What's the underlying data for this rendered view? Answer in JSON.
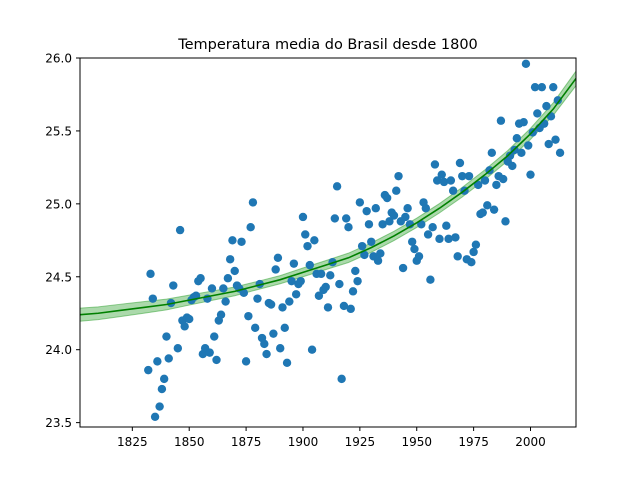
{
  "chart_data": {
    "type": "scatter",
    "title": "Temperatura media do Brasil desde 1800",
    "xlabel": "",
    "ylabel": "",
    "xlim": [
      1802,
      2020
    ],
    "ylim": [
      23.47,
      26.0
    ],
    "xticks": [
      1825,
      1850,
      1875,
      1900,
      1925,
      1950,
      1975,
      2000
    ],
    "yticks": [
      23.5,
      24.0,
      24.5,
      25.0,
      25.5,
      26.0
    ],
    "ytick_labels": [
      "23.5",
      "24.0",
      "24.5",
      "25.0",
      "25.5",
      "26.0"
    ],
    "grid": false,
    "colors": {
      "points": "#1f77b4",
      "fit_line": "#008000",
      "band": "#2ca02c"
    },
    "points": [
      [
        1832,
        23.86
      ],
      [
        1833,
        24.52
      ],
      [
        1834,
        24.35
      ],
      [
        1835,
        23.54
      ],
      [
        1836,
        23.92
      ],
      [
        1837,
        23.61
      ],
      [
        1838,
        23.73
      ],
      [
        1839,
        23.8
      ],
      [
        1840,
        24.09
      ],
      [
        1841,
        23.94
      ],
      [
        1842,
        24.32
      ],
      [
        1843,
        24.44
      ],
      [
        1845,
        24.01
      ],
      [
        1846,
        24.82
      ],
      [
        1847,
        24.2
      ],
      [
        1848,
        24.16
      ],
      [
        1849,
        24.22
      ],
      [
        1850,
        24.21
      ],
      [
        1851,
        24.34
      ],
      [
        1852,
        24.36
      ],
      [
        1853,
        24.37
      ],
      [
        1854,
        24.47
      ],
      [
        1855,
        24.49
      ],
      [
        1856,
        23.97
      ],
      [
        1857,
        24.01
      ],
      [
        1858,
        24.35
      ],
      [
        1859,
        23.98
      ],
      [
        1860,
        24.42
      ],
      [
        1861,
        24.09
      ],
      [
        1862,
        23.93
      ],
      [
        1863,
        24.2
      ],
      [
        1864,
        24.24
      ],
      [
        1865,
        24.42
      ],
      [
        1866,
        24.33
      ],
      [
        1867,
        24.49
      ],
      [
        1868,
        24.62
      ],
      [
        1869,
        24.75
      ],
      [
        1870,
        24.54
      ],
      [
        1871,
        24.44
      ],
      [
        1872,
        24.42
      ],
      [
        1873,
        24.74
      ],
      [
        1874,
        24.39
      ],
      [
        1875,
        23.92
      ],
      [
        1876,
        24.23
      ],
      [
        1877,
        24.84
      ],
      [
        1878,
        25.01
      ],
      [
        1879,
        24.15
      ],
      [
        1880,
        24.35
      ],
      [
        1881,
        24.45
      ],
      [
        1882,
        24.08
      ],
      [
        1883,
        24.04
      ],
      [
        1884,
        23.97
      ],
      [
        1885,
        24.32
      ],
      [
        1886,
        24.31
      ],
      [
        1887,
        24.11
      ],
      [
        1888,
        24.55
      ],
      [
        1889,
        24.63
      ],
      [
        1890,
        24.01
      ],
      [
        1891,
        24.29
      ],
      [
        1892,
        24.15
      ],
      [
        1893,
        23.91
      ],
      [
        1894,
        24.33
      ],
      [
        1895,
        24.47
      ],
      [
        1896,
        24.59
      ],
      [
        1897,
        24.38
      ],
      [
        1898,
        24.45
      ],
      [
        1899,
        24.47
      ],
      [
        1900,
        24.91
      ],
      [
        1901,
        24.79
      ],
      [
        1902,
        24.71
      ],
      [
        1903,
        24.58
      ],
      [
        1904,
        24.0
      ],
      [
        1905,
        24.75
      ],
      [
        1906,
        24.52
      ],
      [
        1907,
        24.37
      ],
      [
        1908,
        24.52
      ],
      [
        1909,
        24.41
      ],
      [
        1910,
        24.43
      ],
      [
        1911,
        24.29
      ],
      [
        1912,
        24.51
      ],
      [
        1913,
        24.6
      ],
      [
        1914,
        24.9
      ],
      [
        1915,
        25.12
      ],
      [
        1916,
        24.45
      ],
      [
        1917,
        23.8
      ],
      [
        1918,
        24.3
      ],
      [
        1919,
        24.9
      ],
      [
        1920,
        24.84
      ],
      [
        1921,
        24.28
      ],
      [
        1922,
        24.4
      ],
      [
        1923,
        24.54
      ],
      [
        1924,
        24.47
      ],
      [
        1925,
        25.01
      ],
      [
        1926,
        24.71
      ],
      [
        1927,
        24.65
      ],
      [
        1928,
        24.95
      ],
      [
        1929,
        24.86
      ],
      [
        1930,
        24.74
      ],
      [
        1931,
        24.64
      ],
      [
        1932,
        24.97
      ],
      [
        1933,
        24.61
      ],
      [
        1934,
        24.66
      ],
      [
        1935,
        24.86
      ],
      [
        1936,
        25.06
      ],
      [
        1937,
        25.04
      ],
      [
        1938,
        24.88
      ],
      [
        1939,
        24.94
      ],
      [
        1940,
        24.92
      ],
      [
        1941,
        25.09
      ],
      [
        1942,
        25.19
      ],
      [
        1943,
        24.88
      ],
      [
        1944,
        24.56
      ],
      [
        1945,
        24.91
      ],
      [
        1946,
        24.97
      ],
      [
        1947,
        24.86
      ],
      [
        1948,
        24.74
      ],
      [
        1949,
        24.69
      ],
      [
        1950,
        24.61
      ],
      [
        1951,
        24.64
      ],
      [
        1952,
        24.86
      ],
      [
        1953,
        25.01
      ],
      [
        1954,
        24.97
      ],
      [
        1955,
        24.79
      ],
      [
        1956,
        24.48
      ],
      [
        1957,
        24.84
      ],
      [
        1958,
        25.27
      ],
      [
        1959,
        25.16
      ],
      [
        1960,
        24.76
      ],
      [
        1961,
        25.2
      ],
      [
        1962,
        25.15
      ],
      [
        1963,
        24.85
      ],
      [
        1964,
        24.76
      ],
      [
        1965,
        25.16
      ],
      [
        1966,
        25.09
      ],
      [
        1967,
        24.77
      ],
      [
        1968,
        24.64
      ],
      [
        1969,
        25.28
      ],
      [
        1970,
        25.19
      ],
      [
        1971,
        25.09
      ],
      [
        1972,
        24.62
      ],
      [
        1973,
        25.19
      ],
      [
        1974,
        24.6
      ],
      [
        1975,
        24.67
      ],
      [
        1976,
        24.72
      ],
      [
        1977,
        25.13
      ],
      [
        1978,
        24.93
      ],
      [
        1979,
        24.94
      ],
      [
        1980,
        25.16
      ],
      [
        1981,
        24.99
      ],
      [
        1982,
        25.23
      ],
      [
        1983,
        25.35
      ],
      [
        1984,
        24.96
      ],
      [
        1985,
        25.13
      ],
      [
        1986,
        25.19
      ],
      [
        1987,
        25.57
      ],
      [
        1988,
        25.17
      ],
      [
        1989,
        24.88
      ],
      [
        1990,
        25.29
      ],
      [
        1991,
        25.33
      ],
      [
        1992,
        25.26
      ],
      [
        1993,
        25.37
      ],
      [
        1994,
        25.45
      ],
      [
        1995,
        25.55
      ],
      [
        1996,
        25.35
      ],
      [
        1997,
        25.56
      ],
      [
        1998,
        25.96
      ],
      [
        1999,
        25.4
      ],
      [
        2000,
        25.2
      ],
      [
        2001,
        25.49
      ],
      [
        2002,
        25.8
      ],
      [
        2003,
        25.62
      ],
      [
        2004,
        25.52
      ],
      [
        2005,
        25.8
      ],
      [
        2006,
        25.55
      ],
      [
        2007,
        25.67
      ],
      [
        2008,
        25.41
      ],
      [
        2009,
        25.6
      ],
      [
        2010,
        25.8
      ],
      [
        2011,
        25.44
      ],
      [
        2012,
        25.71
      ],
      [
        2013,
        25.35
      ]
    ],
    "fit": {
      "x": [
        1802,
        1810,
        1820,
        1830,
        1840,
        1850,
        1860,
        1870,
        1880,
        1890,
        1900,
        1910,
        1920,
        1930,
        1940,
        1950,
        1960,
        1970,
        1980,
        1990,
        2000,
        2010,
        2020
      ],
      "y": [
        24.24,
        24.25,
        24.27,
        24.29,
        24.31,
        24.34,
        24.37,
        24.4,
        24.44,
        24.48,
        24.53,
        24.58,
        24.63,
        24.7,
        24.78,
        24.87,
        24.97,
        25.08,
        25.2,
        25.33,
        25.48,
        25.65,
        25.86
      ],
      "band_halfwidth": [
        0.045,
        0.044,
        0.042,
        0.04,
        0.037,
        0.034,
        0.032,
        0.03,
        0.028,
        0.028,
        0.03,
        0.031,
        0.032,
        0.032,
        0.032,
        0.032,
        0.032,
        0.033,
        0.034,
        0.035,
        0.038,
        0.043,
        0.05
      ]
    }
  }
}
